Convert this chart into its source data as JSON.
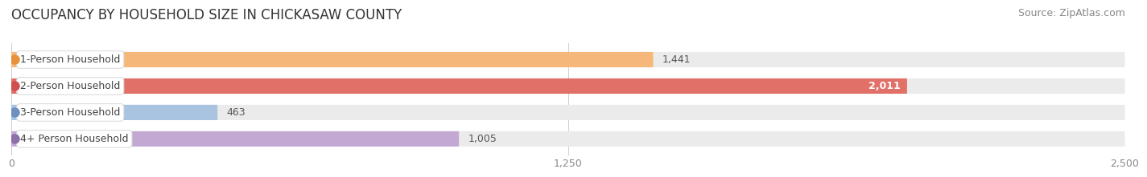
{
  "title": "OCCUPANCY BY HOUSEHOLD SIZE IN CHICKASAW COUNTY",
  "source": "Source: ZipAtlas.com",
  "categories": [
    "1-Person Household",
    "2-Person Household",
    "3-Person Household",
    "4+ Person Household"
  ],
  "values": [
    1441,
    2011,
    463,
    1005
  ],
  "bar_colors": [
    "#F5B87A",
    "#E07068",
    "#A8C4E0",
    "#C4A8D4"
  ],
  "label_dot_colors": [
    "#E8903A",
    "#D05050",
    "#7090C0",
    "#9070A8"
  ],
  "value_inside": [
    false,
    true,
    false,
    false
  ],
  "xlim": [
    0,
    2500
  ],
  "xticks": [
    0,
    1250,
    2500
  ],
  "background_color": "#ffffff",
  "bar_bg_color": "#ebebeb",
  "title_fontsize": 12,
  "source_fontsize": 9,
  "tick_fontsize": 9,
  "label_fontsize": 9,
  "value_fontsize": 9
}
